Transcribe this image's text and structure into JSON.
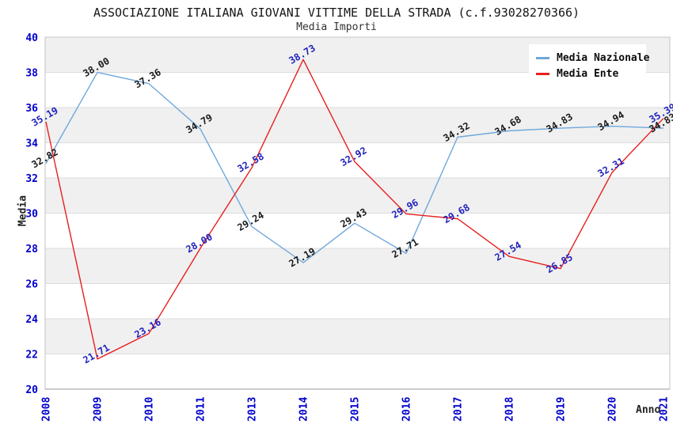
{
  "header": {
    "title": "ASSOCIAZIONE ITALIANA GIOVANI VITTIME DELLA STRADA (c.f.93028270366)",
    "subtitle": "Media Importi"
  },
  "chart_data": {
    "type": "line",
    "title": "ASSOCIAZIONE ITALIANA GIOVANI VITTIME DELLA STRADA (c.f.93028270366)",
    "subtitle": "Media Importi",
    "xlabel": "Anno",
    "ylabel": "Media",
    "categories": [
      "2008",
      "2009",
      "2010",
      "2011",
      "2013",
      "2014",
      "2015",
      "2016",
      "2017",
      "2018",
      "2019",
      "2020",
      "2021"
    ],
    "series": [
      {
        "name": "Media Nazionale",
        "color": "#6FA8DC",
        "label_color": "#1a1a1a",
        "values": [
          32.82,
          38.0,
          37.36,
          34.79,
          29.24,
          27.19,
          29.43,
          27.71,
          34.32,
          34.68,
          34.83,
          34.94,
          34.83
        ]
      },
      {
        "name": "Media Ente",
        "color": "#E81F1F",
        "label_color": "#2222BE",
        "values": [
          35.19,
          21.71,
          23.16,
          28.0,
          32.58,
          38.73,
          32.92,
          29.96,
          29.68,
          27.54,
          26.85,
          32.31,
          35.39
        ]
      }
    ],
    "ylim": [
      20,
      40
    ],
    "ytick_step": 2,
    "yticks": [
      20,
      22,
      24,
      26,
      28,
      30,
      32,
      34,
      36,
      38,
      40
    ],
    "grid": true,
    "gridline_color": "#DCDCDC",
    "band_color": "#F0F0F0",
    "frame_color": "#C4C4C4",
    "axis_line_color": "#999999",
    "tick_label_color": "#0000CC",
    "legend_position": "top-right",
    "data_labels": "two-decimal, rotated -30deg"
  }
}
